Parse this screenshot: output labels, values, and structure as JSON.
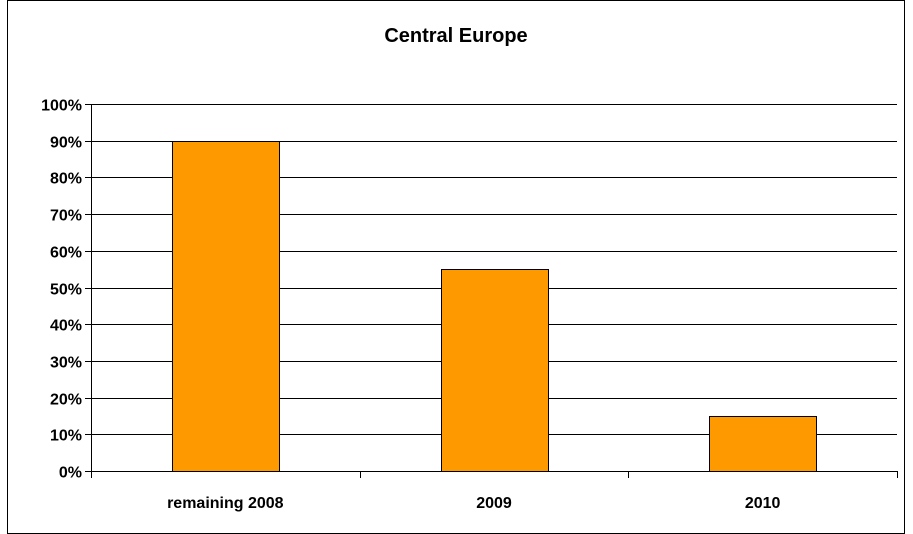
{
  "chart_data": {
    "type": "bar",
    "title": "Central Europe",
    "categories": [
      "remaining 2008",
      "2009",
      "2010"
    ],
    "series": [
      {
        "values": [
          90,
          55,
          15
        ],
        "color": "#ff9900"
      }
    ],
    "y_unit": "%",
    "ylim": [
      0,
      100
    ],
    "y_ticks": [
      0,
      10,
      20,
      30,
      40,
      50,
      60,
      70,
      80,
      90,
      100
    ],
    "y_tick_labels": [
      "0%",
      "10%",
      "20%",
      "30%",
      "40%",
      "50%",
      "60%",
      "70%",
      "80%",
      "90%",
      "100%"
    ],
    "grid": true,
    "legend": "none"
  }
}
